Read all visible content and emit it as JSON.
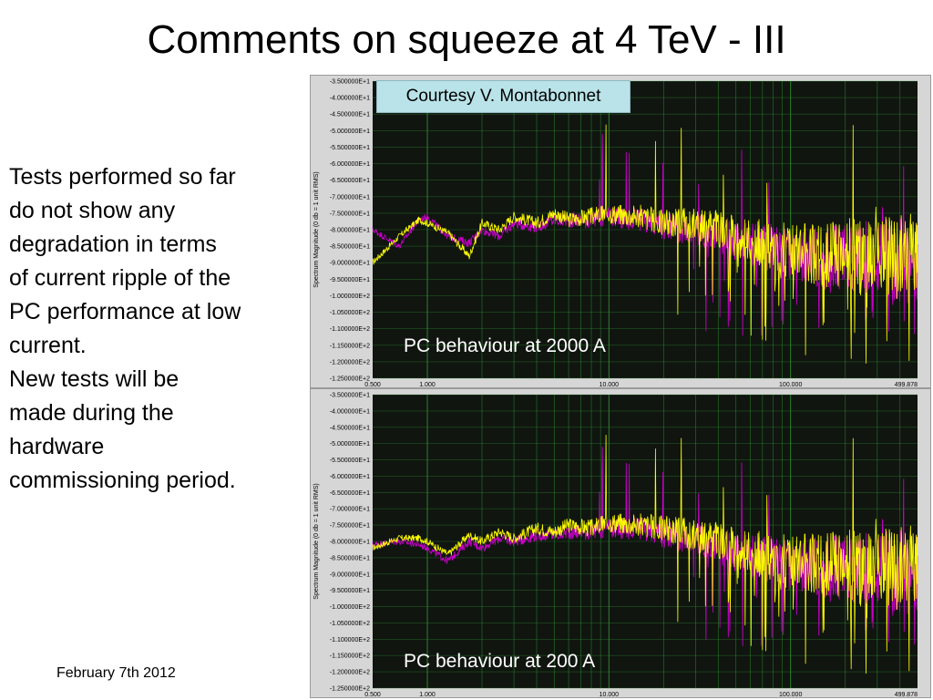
{
  "slide": {
    "title": "Comments on squeeze at 4 TeV - III",
    "body_lines": [
      "Tests performed so far",
      "do not show any",
      "degradation in terms",
      "of current ripple of the",
      "PC performance at low",
      "current.",
      "New tests will be",
      "made during the",
      "hardware",
      "commissioning period."
    ],
    "footer_date": "February 7th 2012",
    "credit": "Courtesy V. Montabonnet"
  },
  "colors": {
    "plot_background": "#101510",
    "panel_background": "#d6d6d6",
    "grid": "#2f8f2f",
    "series_1": "#ffff00",
    "series_2": "#cc00cc",
    "credit_background": "#b9e3e8"
  },
  "chart_data": [
    {
      "type": "line",
      "caption": "PC behaviour at 2000 A",
      "ylabel": "Spectrum Magnitude (0 db = 1 unit RMS)",
      "x_scale": "log",
      "xlim": [
        0.5,
        499.878
      ],
      "ylim": [
        -125,
        -35
      ],
      "x_tick_labels": [
        "0.500",
        "1.000",
        "10.000",
        "100.000",
        "499.878"
      ],
      "y_tick_labels": [
        "-3.500000E+1",
        "-4.000000E+1",
        "-4.500000E+1",
        "-5.000000E+1",
        "-5.500000E+1",
        "-6.000000E+1",
        "-6.500000E+1",
        "-7.000000E+1",
        "-7.500000E+1",
        "-8.000000E+1",
        "-8.500000E+1",
        "-9.000000E+1",
        "-9.500000E+1",
        "-1.000000E+2",
        "-1.050000E+2",
        "-1.100000E+2",
        "-1.150000E+2",
        "-1.200000E+2",
        "-1.250000E+2"
      ],
      "series": [
        {
          "values": [
            [
              0.5,
              -90
            ],
            [
              0.7,
              -82
            ],
            [
              0.9,
              -77
            ],
            [
              1.0,
              -78
            ],
            [
              1.3,
              -81
            ],
            [
              1.7,
              -88
            ],
            [
              2.0,
              -78
            ],
            [
              2.5,
              -80
            ],
            [
              3.0,
              -76
            ],
            [
              4.0,
              -78
            ],
            [
              5.0,
              -75
            ],
            [
              6.0,
              -77
            ],
            [
              8.0,
              -76
            ],
            [
              10.0,
              -75
            ],
            [
              15.0,
              -76
            ],
            [
              20.0,
              -78
            ],
            [
              30.0,
              -78
            ],
            [
              40.0,
              -80
            ],
            [
              50.0,
              -82
            ],
            [
              70.0,
              -84
            ],
            [
              100.0,
              -86
            ],
            [
              150.0,
              -88
            ],
            [
              200.0,
              -87
            ],
            [
              300.0,
              -88
            ],
            [
              499.878,
              -88
            ]
          ]
        },
        {
          "values": [
            [
              0.5,
              -80
            ],
            [
              0.7,
              -85
            ],
            [
              0.9,
              -77
            ],
            [
              1.0,
              -76
            ],
            [
              1.3,
              -82
            ],
            [
              1.7,
              -84
            ],
            [
              2.0,
              -80
            ],
            [
              2.5,
              -82
            ],
            [
              3.0,
              -78
            ],
            [
              4.0,
              -79
            ],
            [
              5.0,
              -77
            ],
            [
              6.0,
              -77
            ],
            [
              8.0,
              -77
            ],
            [
              10.0,
              -76
            ],
            [
              15.0,
              -77
            ],
            [
              20.0,
              -79
            ],
            [
              30.0,
              -80
            ],
            [
              40.0,
              -81
            ],
            [
              50.0,
              -83
            ],
            [
              70.0,
              -85
            ],
            [
              100.0,
              -87
            ],
            [
              150.0,
              -89
            ],
            [
              200.0,
              -88
            ],
            [
              300.0,
              -89
            ],
            [
              499.878,
              -89
            ]
          ]
        }
      ]
    },
    {
      "type": "line",
      "caption": "PC behaviour at 200 A",
      "ylabel": "Spectrum Magnitude (0 db = 1 unit RMS)",
      "x_scale": "log",
      "xlim": [
        0.5,
        499.878
      ],
      "ylim": [
        -125,
        -35
      ],
      "x_tick_labels": [
        "0.500",
        "1.000",
        "10.000",
        "100.000",
        "499.878"
      ],
      "y_tick_labels": [
        "-3.500000E+1",
        "-4.000000E+1",
        "-4.500000E+1",
        "-5.000000E+1",
        "-5.500000E+1",
        "-6.000000E+1",
        "-6.500000E+1",
        "-7.000000E+1",
        "-7.500000E+1",
        "-8.000000E+1",
        "-8.500000E+1",
        "-9.000000E+1",
        "-9.500000E+1",
        "-1.000000E+2",
        "-1.050000E+2",
        "-1.100000E+2",
        "-1.150000E+2",
        "-1.200000E+2",
        "-1.250000E+2"
      ],
      "series": [
        {
          "values": [
            [
              0.5,
              -82
            ],
            [
              0.7,
              -79
            ],
            [
              0.9,
              -79
            ],
            [
              1.0,
              -80
            ],
            [
              1.3,
              -84
            ],
            [
              1.7,
              -78
            ],
            [
              2.0,
              -80
            ],
            [
              2.5,
              -77
            ],
            [
              3.0,
              -79
            ],
            [
              4.0,
              -76
            ],
            [
              5.0,
              -77
            ],
            [
              6.0,
              -75
            ],
            [
              8.0,
              -76
            ],
            [
              10.0,
              -74
            ],
            [
              15.0,
              -75
            ],
            [
              20.0,
              -76
            ],
            [
              30.0,
              -78
            ],
            [
              40.0,
              -80
            ],
            [
              50.0,
              -82
            ],
            [
              70.0,
              -84
            ],
            [
              100.0,
              -86
            ],
            [
              150.0,
              -87
            ],
            [
              200.0,
              -87
            ],
            [
              300.0,
              -88
            ],
            [
              499.878,
              -88
            ]
          ]
        },
        {
          "values": [
            [
              0.5,
              -81
            ],
            [
              0.7,
              -80
            ],
            [
              0.9,
              -81
            ],
            [
              1.0,
              -82
            ],
            [
              1.3,
              -86
            ],
            [
              1.7,
              -80
            ],
            [
              2.0,
              -82
            ],
            [
              2.5,
              -79
            ],
            [
              3.0,
              -80
            ],
            [
              4.0,
              -78
            ],
            [
              5.0,
              -78
            ],
            [
              6.0,
              -77
            ],
            [
              8.0,
              -77
            ],
            [
              10.0,
              -76
            ],
            [
              15.0,
              -76
            ],
            [
              20.0,
              -78
            ],
            [
              30.0,
              -79
            ],
            [
              40.0,
              -81
            ],
            [
              50.0,
              -83
            ],
            [
              70.0,
              -85
            ],
            [
              100.0,
              -87
            ],
            [
              150.0,
              -88
            ],
            [
              200.0,
              -88
            ],
            [
              300.0,
              -89
            ],
            [
              499.878,
              -89
            ]
          ]
        }
      ]
    }
  ]
}
